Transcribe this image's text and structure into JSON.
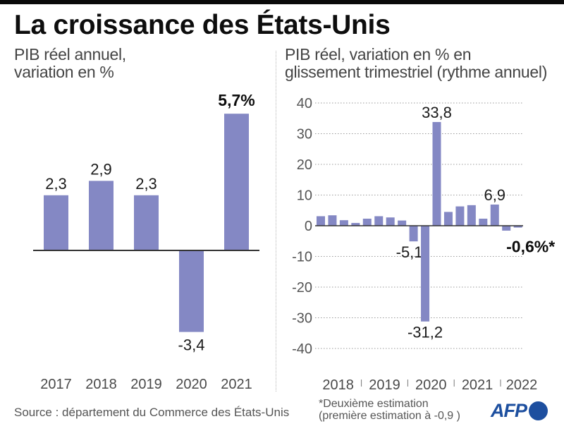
{
  "header": {
    "title": "La croissance des États-Unis"
  },
  "left_panel": {
    "subtitle_lines": [
      "PIB réel annuel,",
      "variation en %"
    ]
  },
  "right_panel": {
    "subtitle_lines": [
      "PIB réel, variation en % en",
      "glissement trimestriel (rythme annuel)"
    ]
  },
  "footer": {
    "source": "Source : département du Commerce des États-Unis",
    "note_lines": [
      "*Deuxième estimation",
      "(première estimation à -0,9 )"
    ],
    "logo": "AFP"
  },
  "colors": {
    "bar": "#8488c4",
    "logo": "#1d4f9f",
    "axis": "#333333",
    "grid": "#9a9a9a"
  },
  "chart_data": [
    {
      "type": "bar",
      "title": "PIB réel annuel, variation en %",
      "categories": [
        "2017",
        "2018",
        "2019",
        "2020",
        "2021"
      ],
      "values": [
        2.3,
        2.9,
        2.3,
        -3.4,
        5.7
      ],
      "data_labels": [
        "2,3",
        "2,9",
        "2,3",
        "-3,4",
        "5,7%"
      ],
      "highlight_index": 4,
      "xlabel": "",
      "ylabel": "",
      "ylim": [
        -3.4,
        5.7
      ],
      "grid": false,
      "legend": "none"
    },
    {
      "type": "bar",
      "title": "PIB réel, variation en % en glissement trimestriel (rythme annuel)",
      "categories": [
        "2018",
        "2019",
        "2020",
        "2021",
        "2022"
      ],
      "bars_per_year": [
        4,
        4,
        4,
        4,
        2
      ],
      "values": [
        3.1,
        3.4,
        1.8,
        0.9,
        2.3,
        3.1,
        2.7,
        1.7,
        -5.1,
        -31.2,
        33.8,
        4.5,
        6.3,
        6.7,
        2.3,
        6.9,
        -1.6,
        -0.6
      ],
      "data_labels": [
        null,
        null,
        null,
        null,
        null,
        null,
        null,
        null,
        "-5,1",
        "-31,2",
        "33,8",
        null,
        null,
        null,
        null,
        "6,9",
        null,
        "-0,6%*"
      ],
      "highlight_index": 17,
      "yticks": [
        40,
        30,
        20,
        10,
        0,
        -10,
        -20,
        -30,
        -40
      ],
      "ytick_labels": [
        "40",
        "30",
        "20",
        "10",
        "0",
        "-10",
        "-20",
        "-30",
        "-40"
      ],
      "xlabel": "",
      "ylabel": "",
      "ylim": [
        -40,
        40
      ],
      "grid": true,
      "legend": "none"
    }
  ]
}
